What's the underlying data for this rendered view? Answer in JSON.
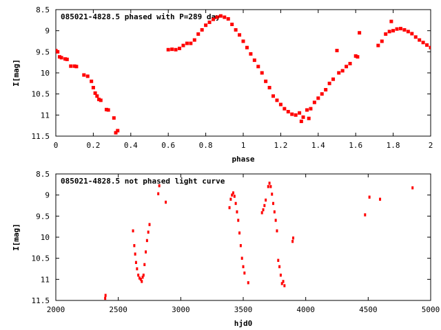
{
  "chart_data": [
    {
      "type": "scatter",
      "title": "085021-4828.5 phased with P=289 day",
      "xlabel": "phase",
      "ylabel": "I[mag]",
      "xlim": [
        0,
        2
      ],
      "ylim": [
        8.5,
        11.5
      ],
      "y_inverted": true,
      "grid": false,
      "x_ticks": [
        "0",
        "0.2",
        "0.4",
        "0.6",
        "0.8",
        "1",
        "1.2",
        "1.4",
        "1.6",
        "1.8",
        "2"
      ],
      "y_ticks": [
        "8.5",
        "9",
        "9.5",
        "10",
        "10.5",
        "11",
        "11.5"
      ],
      "marker_color": "#ff0000",
      "series": [
        {
          "points": [
            [
              0.0,
              9.47
            ],
            [
              0.01,
              9.5
            ],
            [
              0.02,
              9.62
            ],
            [
              0.03,
              9.64
            ],
            [
              0.05,
              9.67
            ],
            [
              0.06,
              9.68
            ],
            [
              0.08,
              9.84
            ],
            [
              0.1,
              9.84
            ],
            [
              0.11,
              9.85
            ],
            [
              0.15,
              10.05
            ],
            [
              0.17,
              10.08
            ],
            [
              0.19,
              10.2
            ],
            [
              0.2,
              10.35
            ],
            [
              0.21,
              10.48
            ],
            [
              0.22,
              10.55
            ],
            [
              0.23,
              10.63
            ],
            [
              0.24,
              10.65
            ],
            [
              0.27,
              10.87
            ],
            [
              0.28,
              10.88
            ],
            [
              0.31,
              11.07
            ],
            [
              0.32,
              11.42
            ],
            [
              0.33,
              11.37
            ],
            [
              0.6,
              9.45
            ],
            [
              0.62,
              9.44
            ],
            [
              0.64,
              9.45
            ],
            [
              0.66,
              9.42
            ],
            [
              0.68,
              9.35
            ],
            [
              0.7,
              9.3
            ],
            [
              0.72,
              9.3
            ],
            [
              0.74,
              9.22
            ],
            [
              0.76,
              9.08
            ],
            [
              0.78,
              8.98
            ],
            [
              0.8,
              8.87
            ],
            [
              0.82,
              8.8
            ],
            [
              0.84,
              8.73
            ],
            [
              0.86,
              8.68
            ],
            [
              0.88,
              8.65
            ],
            [
              0.9,
              8.68
            ],
            [
              0.92,
              8.72
            ],
            [
              0.94,
              8.85
            ],
            [
              0.96,
              8.98
            ],
            [
              0.98,
              9.1
            ],
            [
              1.0,
              9.25
            ],
            [
              1.02,
              9.4
            ],
            [
              1.04,
              9.55
            ],
            [
              1.06,
              9.7
            ],
            [
              1.08,
              9.85
            ],
            [
              1.1,
              10.0
            ],
            [
              1.12,
              10.2
            ],
            [
              1.14,
              10.35
            ],
            [
              1.16,
              10.55
            ],
            [
              1.18,
              10.65
            ],
            [
              1.2,
              10.75
            ],
            [
              1.22,
              10.85
            ],
            [
              1.24,
              10.92
            ],
            [
              1.26,
              10.98
            ],
            [
              1.28,
              11.0
            ],
            [
              1.3,
              10.95
            ],
            [
              1.31,
              11.15
            ],
            [
              1.32,
              11.05
            ],
            [
              1.34,
              10.88
            ],
            [
              1.35,
              11.08
            ],
            [
              1.36,
              10.85
            ],
            [
              1.38,
              10.7
            ],
            [
              1.4,
              10.6
            ],
            [
              1.42,
              10.5
            ],
            [
              1.44,
              10.4
            ],
            [
              1.46,
              10.25
            ],
            [
              1.48,
              10.15
            ],
            [
              1.5,
              9.47
            ],
            [
              1.51,
              10.0
            ],
            [
              1.53,
              9.95
            ],
            [
              1.55,
              9.85
            ],
            [
              1.57,
              9.78
            ],
            [
              1.6,
              9.6
            ],
            [
              1.61,
              9.62
            ],
            [
              1.62,
              9.05
            ],
            [
              1.72,
              9.35
            ],
            [
              1.74,
              9.25
            ],
            [
              1.76,
              9.08
            ],
            [
              1.78,
              9.02
            ],
            [
              1.79,
              8.78
            ],
            [
              1.8,
              9.0
            ],
            [
              1.82,
              8.96
            ],
            [
              1.84,
              8.95
            ],
            [
              1.86,
              8.98
            ],
            [
              1.88,
              9.02
            ],
            [
              1.9,
              9.07
            ],
            [
              1.92,
              9.15
            ],
            [
              1.94,
              9.22
            ],
            [
              1.96,
              9.28
            ],
            [
              1.98,
              9.34
            ],
            [
              2.0,
              9.4
            ]
          ]
        }
      ]
    },
    {
      "type": "scatter",
      "title": "085021-4828.5 not phased light curve",
      "xlabel": "hjd0",
      "ylabel": "I[mag]",
      "xlim": [
        2000,
        5000
      ],
      "ylim": [
        8.5,
        11.5
      ],
      "y_inverted": true,
      "grid": false,
      "x_ticks": [
        "2000",
        "2500",
        "3000",
        "3500",
        "4000",
        "4500",
        "5000"
      ],
      "y_ticks": [
        "8.5",
        "9",
        "9.5",
        "10",
        "10.5",
        "11",
        "11.5"
      ],
      "marker_color": "#ff0000",
      "series": [
        {
          "points": [
            [
              2395,
              11.45
            ],
            [
              2398,
              11.38
            ],
            [
              2618,
              9.85
            ],
            [
              2628,
              10.2
            ],
            [
              2635,
              10.4
            ],
            [
              2642,
              10.6
            ],
            [
              2650,
              10.75
            ],
            [
              2660,
              10.9
            ],
            [
              2670,
              10.97
            ],
            [
              2680,
              11.0
            ],
            [
              2688,
              11.05
            ],
            [
              2695,
              10.95
            ],
            [
              2702,
              10.9
            ],
            [
              2710,
              10.65
            ],
            [
              2720,
              10.35
            ],
            [
              2730,
              10.08
            ],
            [
              2740,
              9.88
            ],
            [
              2750,
              9.7
            ],
            [
              2820,
              8.97
            ],
            [
              2828,
              8.78
            ],
            [
              2880,
              9.17
            ],
            [
              3390,
              9.3
            ],
            [
              3400,
              9.1
            ],
            [
              3410,
              9.0
            ],
            [
              3420,
              8.95
            ],
            [
              3430,
              9.03
            ],
            [
              3440,
              9.2
            ],
            [
              3450,
              9.4
            ],
            [
              3460,
              9.6
            ],
            [
              3470,
              9.9
            ],
            [
              3480,
              10.2
            ],
            [
              3490,
              10.5
            ],
            [
              3500,
              10.7
            ],
            [
              3510,
              10.85
            ],
            [
              3540,
              11.08
            ],
            [
              3650,
              9.42
            ],
            [
              3660,
              9.35
            ],
            [
              3670,
              9.25
            ],
            [
              3680,
              9.12
            ],
            [
              3700,
              8.8
            ],
            [
              3710,
              8.72
            ],
            [
              3720,
              8.8
            ],
            [
              3730,
              8.98
            ],
            [
              3740,
              9.2
            ],
            [
              3750,
              9.4
            ],
            [
              3760,
              9.6
            ],
            [
              3770,
              9.85
            ],
            [
              3780,
              10.55
            ],
            [
              3790,
              10.7
            ],
            [
              3800,
              10.9
            ],
            [
              3810,
              11.1
            ],
            [
              3820,
              11.05
            ],
            [
              3830,
              11.15
            ],
            [
              3895,
              10.1
            ],
            [
              3900,
              10.02
            ],
            [
              4475,
              9.47
            ],
            [
              4510,
              9.05
            ],
            [
              4595,
              9.1
            ],
            [
              4855,
              8.83
            ]
          ]
        }
      ]
    }
  ]
}
